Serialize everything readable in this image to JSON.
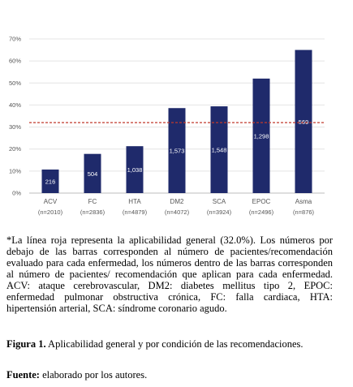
{
  "chart_data": {
    "type": "bar",
    "categories": [
      "ACV",
      "FC",
      "HTA",
      "DM2",
      "SCA",
      "EPOC",
      "Asma"
    ],
    "category_n": [
      "(n=2010)",
      "(n=2836)",
      "(n=4879)",
      "(n=4072)",
      "(n=3924)",
      "(n=2496)",
      "(n=876)"
    ],
    "values": [
      10.7,
      17.8,
      21.3,
      38.6,
      39.4,
      52.0,
      65.0
    ],
    "bar_labels": [
      "216",
      "504",
      "1,038",
      "1,573",
      "1,548",
      "1,298",
      "569"
    ],
    "ylim": [
      0,
      70
    ],
    "yticks": [
      "0%",
      "10%",
      "20%",
      "30%",
      "40%",
      "50%",
      "60%",
      "70%"
    ],
    "reference_line": 32.0,
    "bar_color": "#1f2a6b",
    "reference_color": "#c0392b",
    "grid": true
  },
  "caption": {
    "note": "*La línea roja representa la aplicabilidad general (32.0%). Los números por debajo de las barras corresponden al número de pacientes/recomendación evaluado para cada enfermedad, los números dentro de las barras corresponden al número de pacientes/ recomendación que aplican para cada enfermedad. ACV: ataque cerebrovascular, DM2: diabetes mellitus tipo 2, EPOC: enfermedad pulmonar obstructiva crónica, FC: falla cardiaca, HTA: hipertensión arterial, SCA: síndrome coronario agudo.",
    "figure_label": "Figura 1.",
    "figure_text": "Aplicabilidad general y por condición de las recomendaciones.",
    "source_label": "Fuente:",
    "source_text": "elaborado por los autores."
  }
}
